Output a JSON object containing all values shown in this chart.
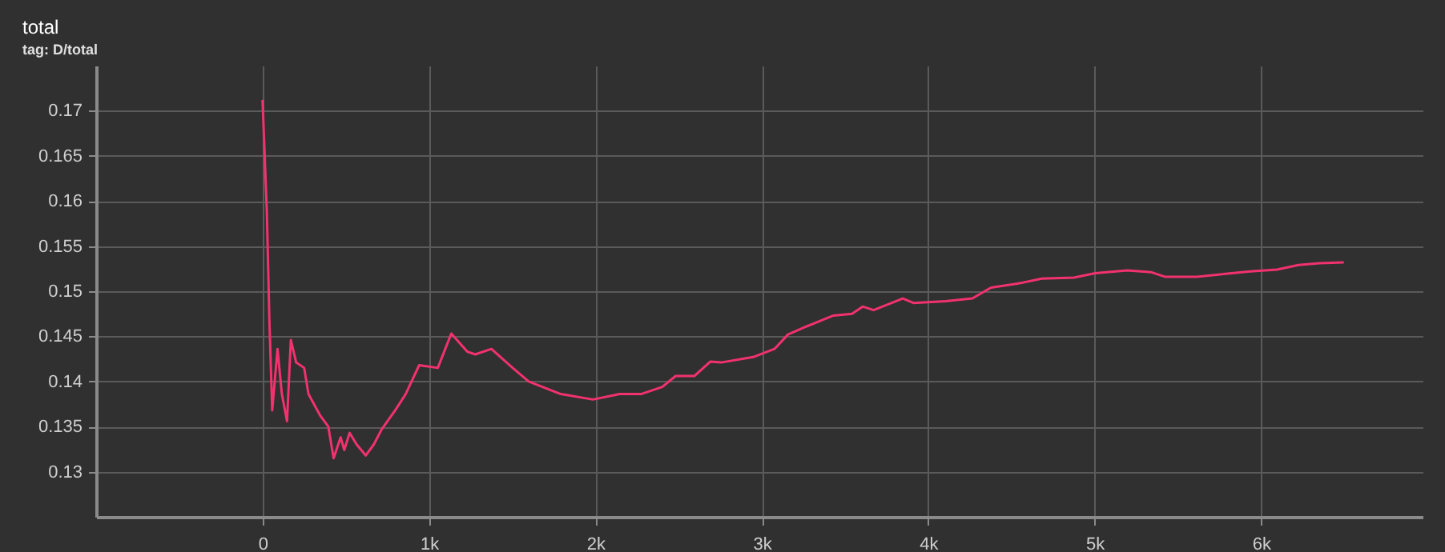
{
  "chart_data": {
    "type": "line",
    "title": "total",
    "subtitle": "tag: D/total",
    "x": [
      0,
      26,
      41,
      58,
      90,
      116,
      147,
      170,
      202,
      250,
      276,
      347,
      395,
      427,
      469,
      491,
      523,
      566,
      620,
      668,
      716,
      797,
      860,
      941,
      1053,
      1134,
      1230,
      1278,
      1375,
      1503,
      1599,
      1792,
      1985,
      2145,
      2274,
      2402,
      2482,
      2594,
      2691,
      2755,
      2948,
      3076,
      3157,
      3269,
      3430,
      3542,
      3606,
      3671,
      3847,
      3911,
      4104,
      4265,
      4377,
      4554,
      4682,
      4875,
      5003,
      5196,
      5341,
      5421,
      5614,
      5774,
      5935,
      6095,
      6224,
      6352,
      6497
    ],
    "series": [
      {
        "color": "#f2326f",
        "values": [
          0.1712,
          0.1587,
          0.1468,
          0.1368,
          0.1436,
          0.1386,
          0.1356,
          0.1446,
          0.1421,
          0.1415,
          0.1386,
          0.1362,
          0.135,
          0.1315,
          0.1338,
          0.1324,
          0.1343,
          0.133,
          0.1318,
          0.133,
          0.1347,
          0.1368,
          0.1386,
          0.1418,
          0.1415,
          0.1453,
          0.1433,
          0.143,
          0.1436,
          0.1415,
          0.14,
          0.1386,
          0.138,
          0.1386,
          0.1386,
          0.1394,
          0.1406,
          0.1406,
          0.1422,
          0.1421,
          0.1427,
          0.1436,
          0.1452,
          0.1461,
          0.1473,
          0.1475,
          0.1483,
          0.1479,
          0.1492,
          0.1487,
          0.1489,
          0.1492,
          0.1504,
          0.1509,
          0.1514,
          0.1515,
          0.152,
          0.1523,
          0.1521,
          0.1516,
          0.1516,
          0.1519,
          0.1522,
          0.1524,
          0.1529,
          0.1531,
          0.1532
        ]
      }
    ],
    "xlim": [
      -1000,
      6970
    ],
    "ylim": [
      0.125,
      0.175
    ],
    "xticks": [
      0,
      {
        "value": 1000,
        "label": "1k"
      },
      {
        "value": 2000,
        "label": "2k"
      },
      {
        "value": 3000,
        "label": "3k"
      },
      {
        "value": 4000,
        "label": "4k"
      },
      {
        "value": 5000,
        "label": "5k"
      },
      {
        "value": 6000,
        "label": "6k"
      }
    ],
    "yticks": [
      0.13,
      0.135,
      0.14,
      0.145,
      0.15,
      0.155,
      0.16,
      0.165,
      0.17
    ],
    "grid": true,
    "marker": "none",
    "line_style": "solid"
  }
}
